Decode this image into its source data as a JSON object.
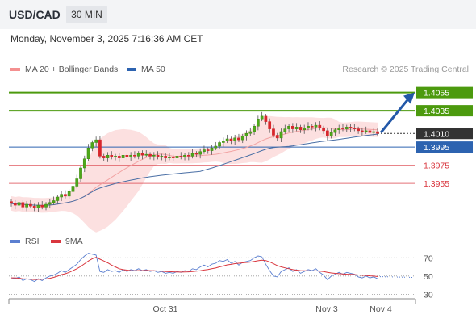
{
  "header": {
    "pair": "USD/CAD",
    "timeframe": "30 MIN"
  },
  "datetime": "Monday, November 3, 2025 7:16:36 AM CET",
  "legend": {
    "bollinger_label": "MA 20 + Bollinger Bands",
    "ma50_label": "MA 50",
    "rsi_label": "RSI",
    "rsi_ma_label": "9MA"
  },
  "credit": "Research © 2025 Trading Central",
  "colors": {
    "green": "#4c9a0e",
    "blue": "#2d63b0",
    "red": "#d9363e",
    "band_fill": "#fbd6d6",
    "ma20": "#f2a3a3",
    "ma50": "#4a6fa5",
    "current": "#333333"
  },
  "chart_data": [
    {
      "type": "line",
      "subtype": "candlestick",
      "x_range": [
        "2025-10-30 09:00",
        "2025-11-04 12:00"
      ],
      "ylim": [
        1.3908,
        1.4068
      ],
      "x_ticks": [
        "Oct 31",
        "Nov 3",
        "Nov 4"
      ],
      "current_price": {
        "value": "1.4010",
        "y": 1.401
      },
      "levels": [
        {
          "value": "1.4055",
          "y": 1.4055,
          "type": "resistance"
        },
        {
          "value": "1.4035",
          "y": 1.4035,
          "type": "resistance"
        },
        {
          "value": "1.3995",
          "y": 1.3995,
          "type": "pivot"
        },
        {
          "value": "1.3975",
          "y": 1.3975,
          "type": "support"
        },
        {
          "value": "1.3955",
          "y": 1.3955,
          "type": "support"
        }
      ],
      "forecast": {
        "from": 1.401,
        "to": 1.4055,
        "direction": "up"
      },
      "closes": [
        1.3933,
        1.3931,
        1.3934,
        1.3929,
        1.3932,
        1.393,
        1.3928,
        1.3931,
        1.3929,
        1.3932,
        1.3934,
        1.3936,
        1.394,
        1.3943,
        1.3941,
        1.3946,
        1.3952,
        1.396,
        1.3972,
        1.3982,
        1.3994,
        1.4,
        1.4003,
        1.3985,
        1.3983,
        1.3986,
        1.3984,
        1.3985,
        1.3983,
        1.3986,
        1.3984,
        1.3986,
        1.3985,
        1.3988,
        1.3986,
        1.3987,
        1.3985,
        1.3986,
        1.3984,
        1.3985,
        1.3983,
        1.3984,
        1.3983,
        1.3985,
        1.3984,
        1.3986,
        1.3985,
        1.3988,
        1.3987,
        1.399,
        1.3992,
        1.3991,
        1.3994,
        1.3996,
        1.4,
        1.4002,
        1.4004,
        1.4002,
        1.4005,
        1.4003,
        1.4007,
        1.401,
        1.4012,
        1.4018,
        1.4026,
        1.4029,
        1.4023,
        1.4015,
        1.4008,
        1.4005,
        1.4012,
        1.4015,
        1.4018,
        1.4015,
        1.4017,
        1.4014,
        1.4016,
        1.4018,
        1.4017,
        1.4019,
        1.4016,
        1.4013,
        1.4007,
        1.4011,
        1.4014,
        1.4016,
        1.4015,
        1.4017,
        1.4016,
        1.4015,
        1.4013,
        1.4012,
        1.4013,
        1.4011,
        1.4012,
        1.401
      ]
    },
    {
      "type": "line",
      "ylim": [
        25,
        80
      ],
      "y_ticks": [
        "70",
        "50",
        "30"
      ],
      "rsi": [
        48,
        47,
        49,
        45,
        47,
        46,
        44,
        47,
        45,
        48,
        50,
        51,
        53,
        56,
        54,
        57,
        60,
        63,
        68,
        72,
        75,
        74,
        73,
        55,
        54,
        57,
        55,
        56,
        54,
        57,
        55,
        57,
        56,
        58,
        56,
        57,
        55,
        56,
        54,
        55,
        53,
        54,
        53,
        55,
        54,
        56,
        55,
        58,
        57,
        60,
        62,
        60,
        63,
        64,
        67,
        66,
        68,
        64,
        66,
        62,
        65,
        66,
        67,
        70,
        72,
        71,
        63,
        56,
        50,
        49,
        55,
        57,
        59,
        55,
        57,
        53,
        55,
        57,
        56,
        58,
        54,
        51,
        46,
        50,
        52,
        54,
        52,
        54,
        53,
        52,
        49,
        48,
        50,
        48,
        49,
        47
      ],
      "rsi_ma": [
        48,
        48,
        47.5,
        47,
        46.8,
        46.5,
        46.2,
        46.4,
        46.5,
        46.8,
        47.5,
        48.5,
        49.8,
        51.5,
        52.5,
        54,
        56,
        58,
        60.5,
        63.5,
        66.5,
        69,
        70.5,
        68.5,
        66.5,
        64.5,
        62,
        60,
        58,
        57,
        56.5,
        56,
        55.9,
        56,
        56,
        56.1,
        56,
        55.8,
        55.6,
        55.4,
        55,
        54.8,
        54.6,
        54.5,
        54.4,
        54.5,
        54.6,
        55,
        55.3,
        55.9,
        56.6,
        57.2,
        58,
        58.8,
        60,
        61,
        62.3,
        62.8,
        63.6,
        64,
        64.5,
        64.9,
        65.3,
        66,
        66.8,
        67.3,
        67,
        65.5,
        63.5,
        61.5,
        60,
        59,
        58,
        57,
        56.5,
        56,
        55.8,
        55.7,
        55.6,
        55.7,
        55.4,
        54.9,
        54,
        53.4,
        52.9,
        52.6,
        52.2,
        52,
        51.8,
        51.6,
        51.2,
        50.8,
        50.6,
        50.2,
        49.9,
        49.4
      ],
      "rsi_forecast_to": 48.5
    }
  ]
}
